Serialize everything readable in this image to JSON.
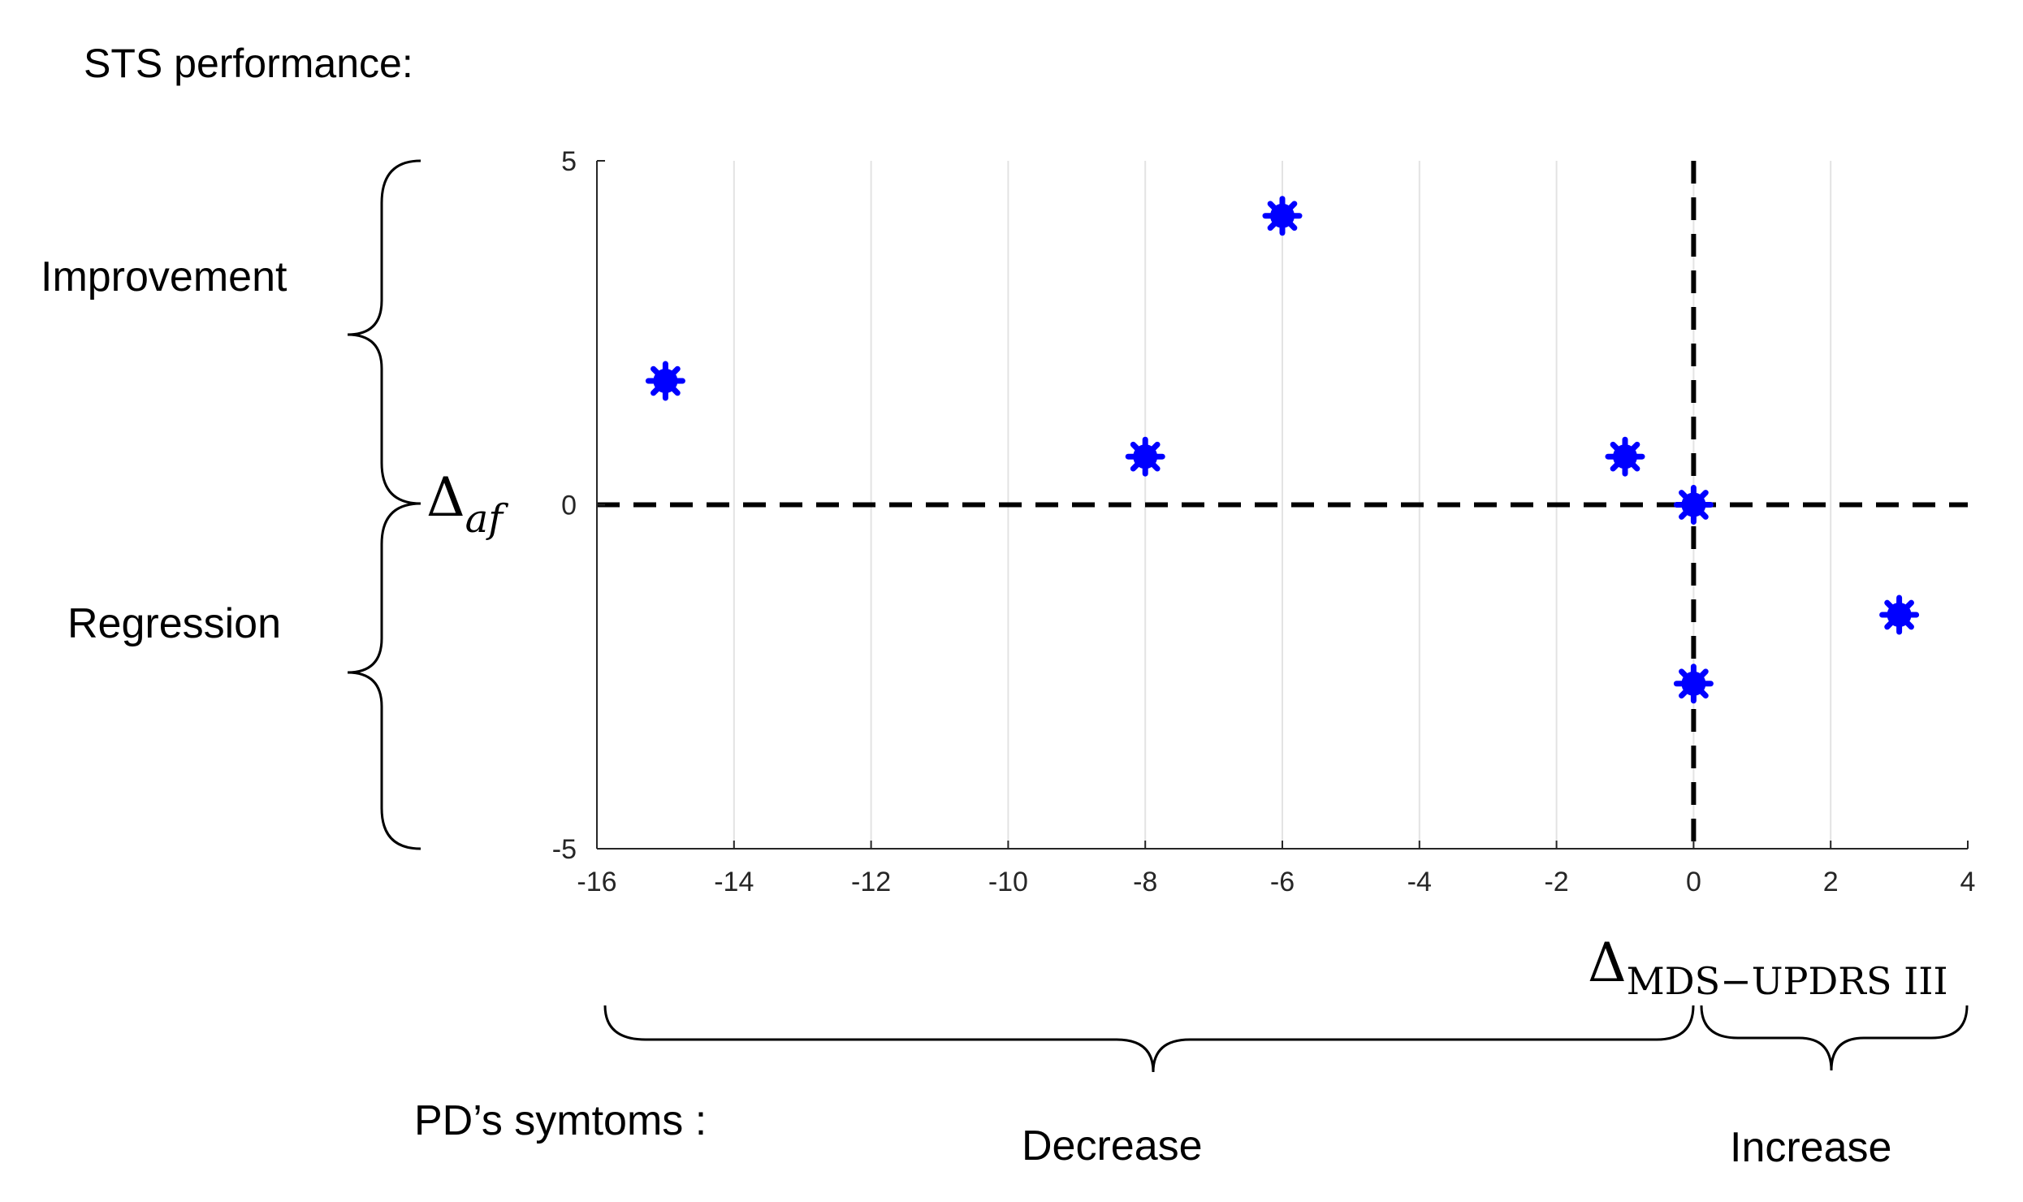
{
  "chart_data": {
    "type": "scatter",
    "caption": "STS performance:",
    "points": [
      {
        "x": -15,
        "y": 1.8
      },
      {
        "x": -8,
        "y": 0.7
      },
      {
        "x": -6,
        "y": 4.2
      },
      {
        "x": -1,
        "y": 0.7
      },
      {
        "x": 0,
        "y": 0
      },
      {
        "x": 0,
        "y": -2.6
      },
      {
        "x": 3,
        "y": -1.6
      }
    ],
    "xlim": [
      -16,
      4
    ],
    "ylim": [
      -5,
      5
    ],
    "x_ticks": [
      -16,
      -14,
      -12,
      -10,
      -8,
      -6,
      -4,
      -2,
      0,
      2,
      4
    ],
    "y_ticks": [
      -5,
      0,
      5
    ],
    "xlabel": {
      "main": "Δ",
      "sub": "MDS−UPDRS III"
    },
    "ylabel": {
      "main": "Δ",
      "sub": "af"
    },
    "reference_lines": {
      "x": 0,
      "y": 0
    },
    "grid": true,
    "marker_color": "#0000ff",
    "y_regions": {
      "improvement": "Improvement",
      "regression": "Regression"
    },
    "x_regions": {
      "caption": "PD’s symtoms :",
      "decrease": "Decrease",
      "increase": "Increase"
    }
  }
}
